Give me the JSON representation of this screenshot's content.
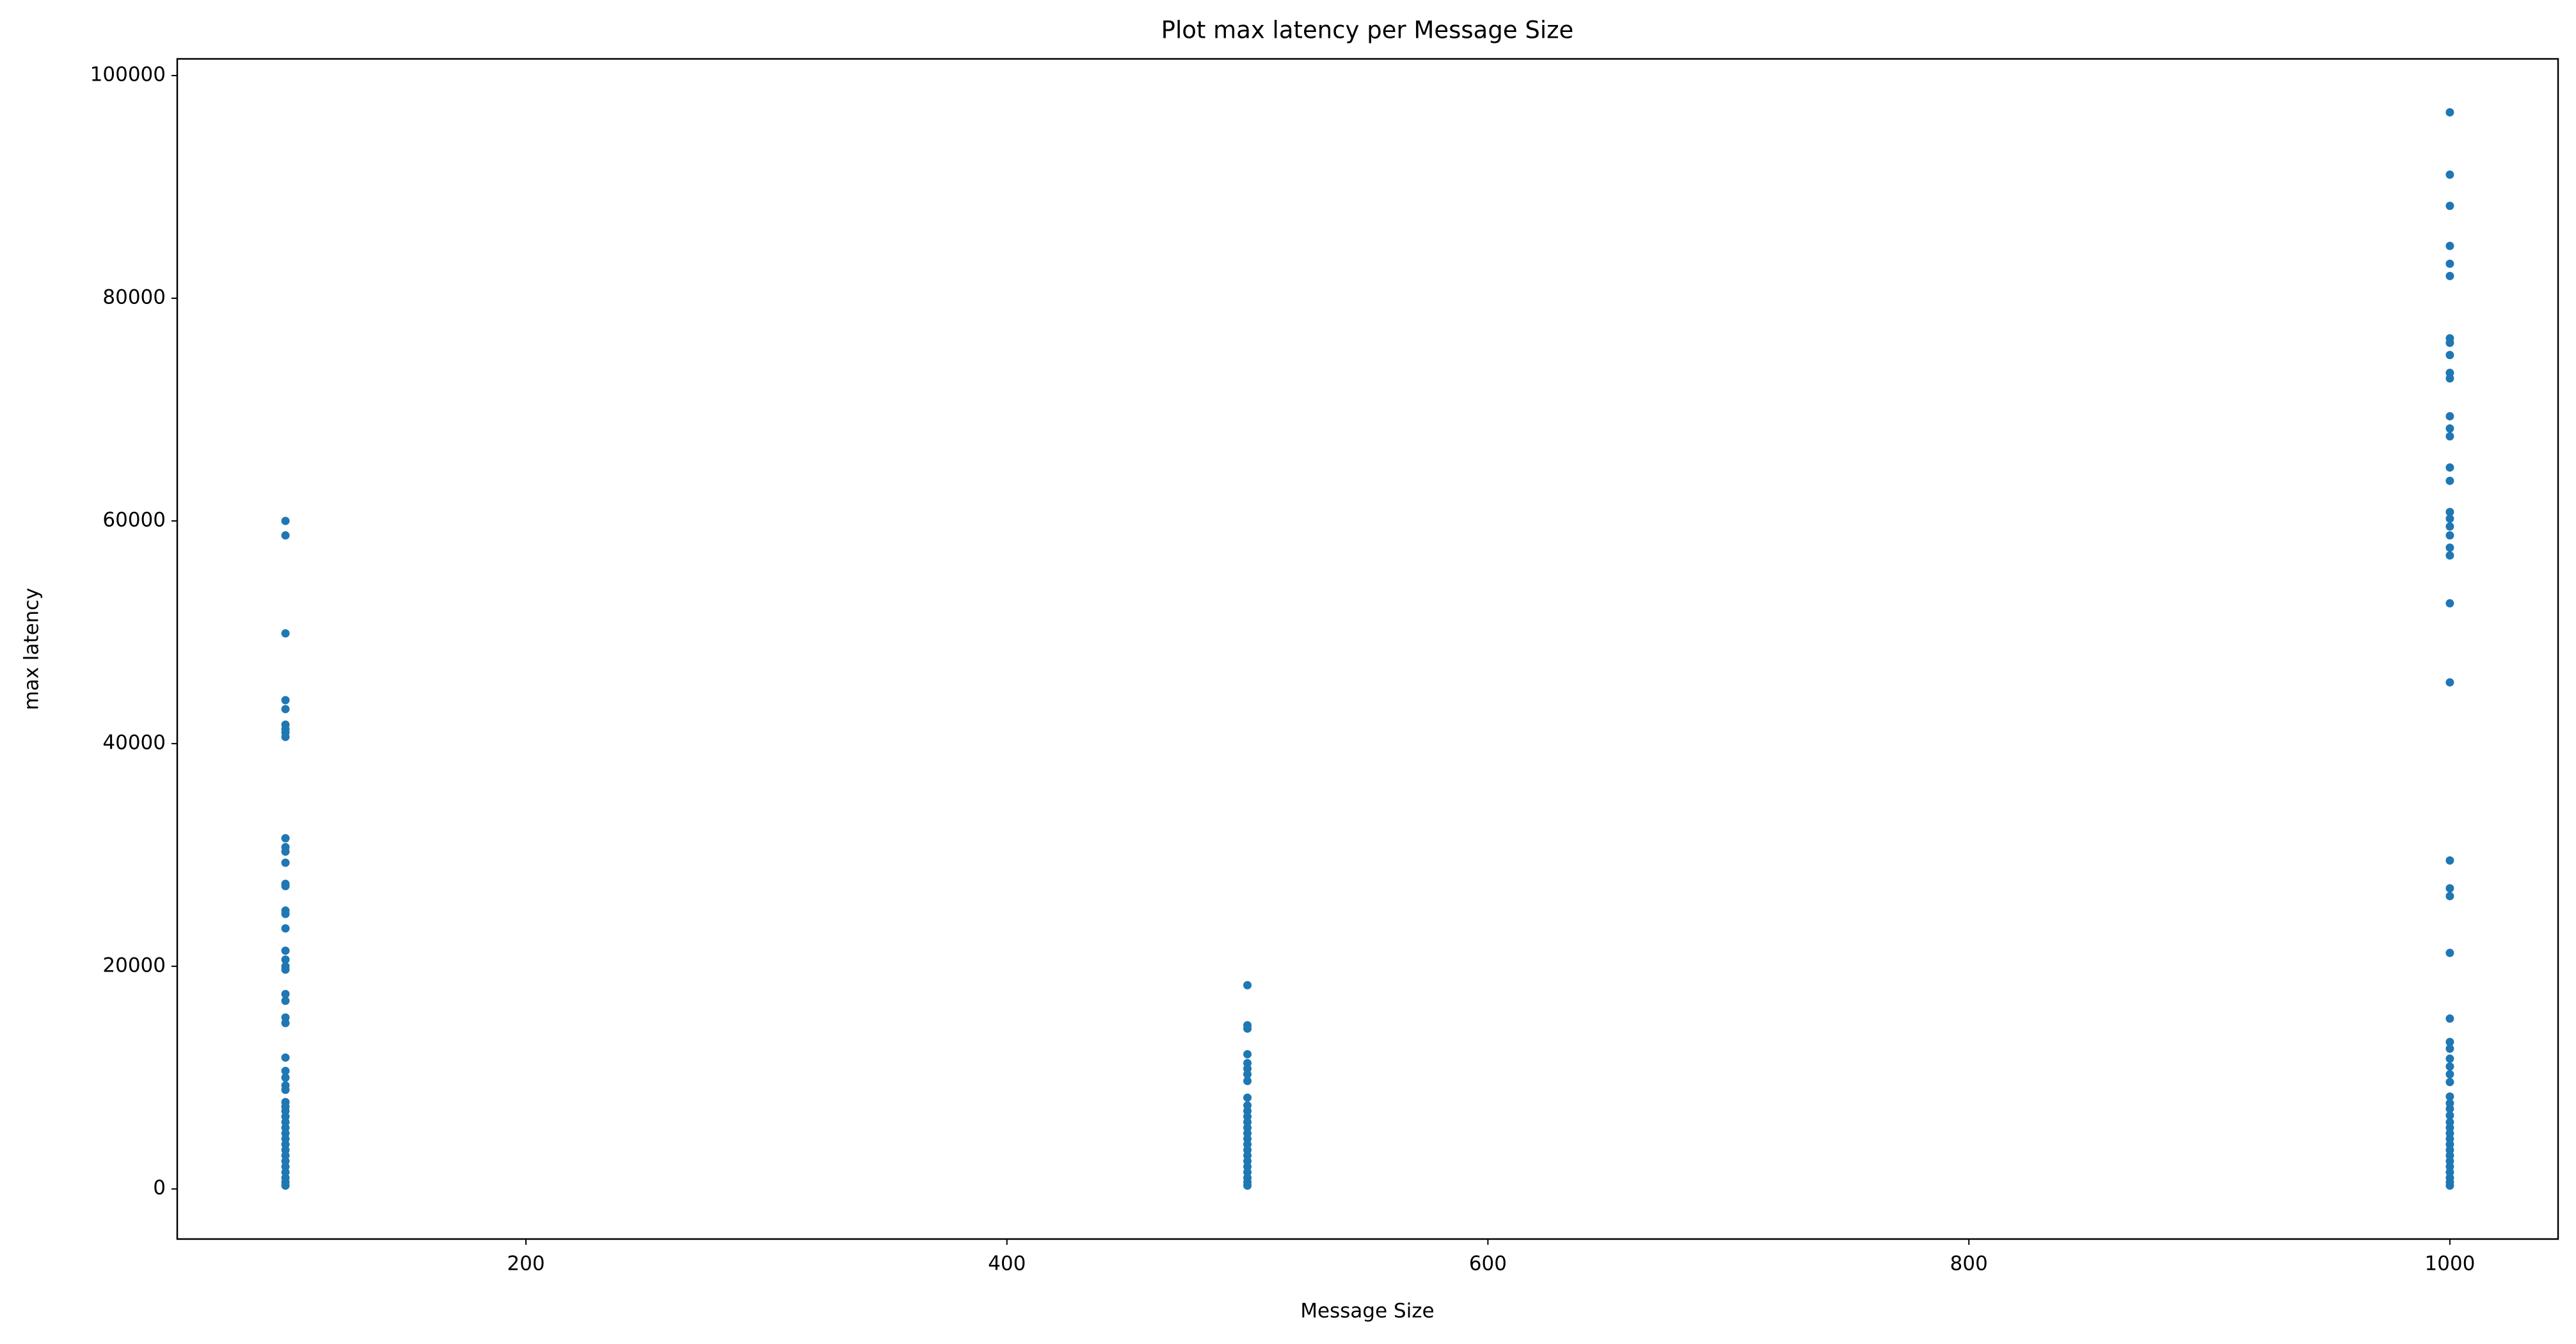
{
  "chart_data": {
    "type": "scatter",
    "title": "Plot max latency per Message Size",
    "x_label": "Message Size",
    "y_label": "max latency",
    "color": "#1f77b4",
    "xlim": [
      55,
      1045
    ],
    "xticks": [
      200,
      400,
      600,
      800,
      1000
    ],
    "ylim": [
      -4500,
      101500
    ],
    "yticks": [
      0,
      20000,
      40000,
      60000,
      80000,
      100000
    ],
    "x": [
      100,
      100,
      100,
      100,
      100,
      100,
      100,
      100,
      100,
      100,
      100,
      100,
      100,
      100,
      100,
      100,
      100,
      100,
      100,
      100,
      100,
      100,
      100,
      100,
      100,
      100,
      100,
      100,
      100,
      100,
      100,
      100,
      100,
      100,
      100,
      100,
      100,
      100,
      100,
      100,
      100,
      100,
      100,
      100,
      100,
      100,
      100,
      100,
      500,
      500,
      500,
      500,
      500,
      500,
      500,
      500,
      500,
      500,
      500,
      500,
      500,
      500,
      500,
      500,
      500,
      500,
      500,
      500,
      500,
      500,
      500,
      500,
      500,
      1000,
      1000,
      1000,
      1000,
      1000,
      1000,
      1000,
      1000,
      1000,
      1000,
      1000,
      1000,
      1000,
      1000,
      1000,
      1000,
      1000,
      1000,
      1000,
      1000,
      1000,
      1000,
      1000,
      1000,
      1000,
      1000,
      1000,
      1000,
      1000,
      1000,
      1000,
      1000,
      1000,
      1000,
      1000,
      1000,
      1000,
      1000,
      1000,
      1000,
      1000,
      1000,
      1000,
      1000,
      1000,
      1000,
      1000,
      1000,
      1000,
      1000,
      1000,
      1000
    ],
    "values": [
      60000,
      58700,
      49900,
      43900,
      43100,
      41700,
      41300,
      41000,
      40600,
      31500,
      30700,
      30300,
      29300,
      27400,
      27200,
      25000,
      24700,
      23400,
      21400,
      20600,
      20000,
      19700,
      17500,
      16900,
      15400,
      14900,
      11800,
      10600,
      10000,
      9300,
      8900,
      7800,
      7400,
      7000,
      6500,
      6000,
      5500,
      5000,
      4500,
      4000,
      3500,
      3000,
      2500,
      2000,
      1500,
      1000,
      600,
      300,
      18300,
      14700,
      14400,
      12100,
      11300,
      10800,
      10300,
      9700,
      8200,
      7500,
      7000,
      6500,
      6000,
      5500,
      5000,
      4500,
      4000,
      3500,
      3000,
      2500,
      2000,
      1500,
      1000,
      600,
      300,
      96700,
      91100,
      88300,
      84700,
      83100,
      82000,
      76400,
      76000,
      74900,
      73300,
      72800,
      69400,
      68300,
      67600,
      64800,
      63600,
      60800,
      60200,
      59500,
      58700,
      57600,
      56900,
      52600,
      45500,
      29500,
      27000,
      26300,
      21200,
      15300,
      13200,
      12600,
      11700,
      11000,
      10300,
      9600,
      8300,
      7700,
      7200,
      6600,
      6000,
      5500,
      5000,
      4500,
      4000,
      3500,
      3000,
      2500,
      2000,
      1500,
      1000,
      600,
      300
    ]
  }
}
